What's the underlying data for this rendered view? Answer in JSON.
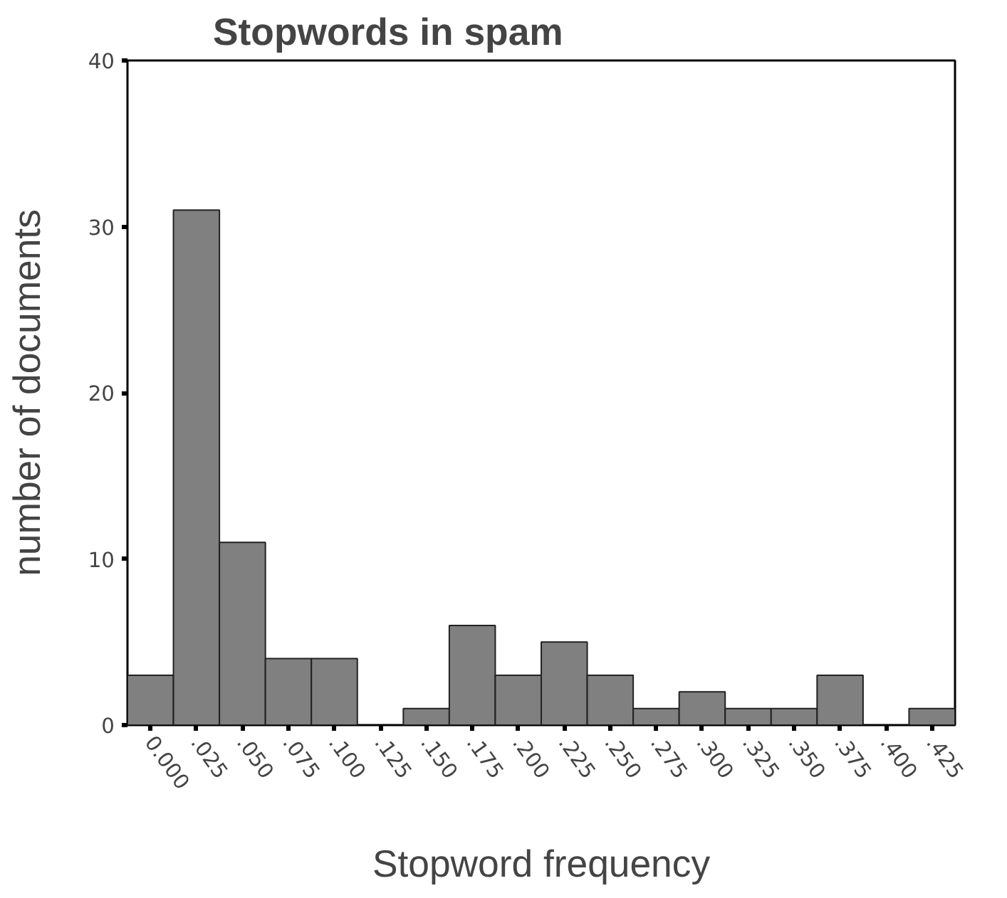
{
  "chart_data": {
    "type": "bar",
    "title": "Stopwords in spam",
    "xlabel": "Stopword frequency",
    "ylabel": "number of documents",
    "categories": [
      "0.000",
      ".025",
      ".050",
      ".075",
      ".100",
      ".125",
      ".150",
      ".175",
      ".200",
      ".225",
      ".250",
      ".275",
      ".300",
      ".325",
      ".350",
      ".375",
      ".400",
      ".425"
    ],
    "values": [
      3,
      31,
      11,
      4,
      4,
      0,
      1,
      6,
      3,
      5,
      3,
      1,
      2,
      1,
      1,
      3,
      0,
      1
    ],
    "color": "#808080",
    "ylim": [
      0,
      40
    ],
    "yticks": [
      0,
      10,
      20,
      30,
      40
    ],
    "grid": false
  }
}
